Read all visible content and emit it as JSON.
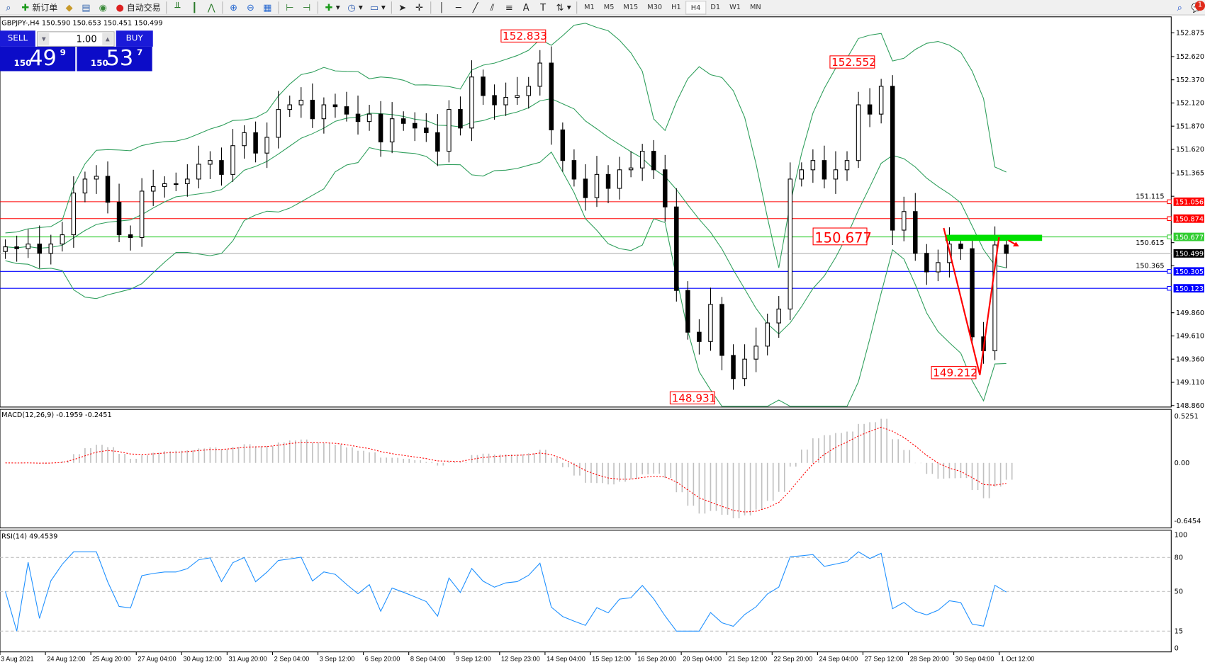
{
  "toolbar": {
    "new_order": "新订单",
    "auto_trading": "自动交易",
    "timeframes": [
      "M1",
      "M5",
      "M15",
      "M30",
      "H1",
      "H4",
      "D1",
      "W1",
      "MN"
    ],
    "active_timeframe": "H4",
    "notification_count": "1"
  },
  "chart": {
    "header": "GBPJPY-,H4  150.590 150.653 150.451 150.499",
    "trade_panel": {
      "sell_label": "SELL",
      "buy_label": "BUY",
      "lot": "1.00",
      "sell": {
        "prefix": "150",
        "big": "49",
        "pip": "9"
      },
      "buy": {
        "prefix": "150",
        "big": "53",
        "pip": "7"
      }
    },
    "price_ticks": [
      "152.875",
      "152.620",
      "152.370",
      "152.120",
      "151.870",
      "151.620",
      "151.365",
      "151.115",
      "150.615",
      "150.365",
      "149.860",
      "149.610",
      "149.360",
      "149.110",
      "148.860"
    ],
    "levels": [
      {
        "price": "151.056",
        "color": "#ff0000"
      },
      {
        "price": "150.874",
        "color": "#ff0000"
      },
      {
        "price": "150.677",
        "color": "#32cd32"
      },
      {
        "price": "150.499",
        "color": "#000000",
        "current": true
      },
      {
        "price": "150.305",
        "color": "#0000ff"
      },
      {
        "price": "150.123",
        "color": "#0000ff"
      }
    ],
    "annotations": [
      "152.833",
      "152.552",
      "150.677",
      "148.931",
      "149.212"
    ],
    "colors": {
      "bands": "#2e9e5b",
      "macd_hist": "#c0c0c0",
      "macd_signal": "#ff0000",
      "rsi": "#1e90ff",
      "bull": "#ffffff",
      "bear": "#000000",
      "zone": "#00e000",
      "drawing": "#ff0000"
    },
    "closes": [
      150.57,
      150.55,
      150.6,
      150.5,
      150.6,
      150.7,
      151.15,
      151.3,
      151.33,
      151.05,
      150.7,
      150.67,
      151.17,
      151.22,
      151.25,
      151.25,
      151.3,
      151.46,
      151.5,
      151.35,
      151.66,
      151.8,
      151.58,
      151.75,
      152.05,
      152.1,
      152.15,
      151.95,
      152.1,
      152.08,
      152.0,
      151.92,
      152.0,
      151.7,
      151.95,
      151.9,
      151.85,
      151.8,
      151.6,
      152.05,
      151.85,
      152.4,
      152.2,
      152.1,
      152.18,
      152.2,
      152.3,
      152.55,
      151.83,
      151.5,
      151.3,
      151.1,
      151.35,
      151.2,
      151.4,
      151.42,
      151.6,
      151.4,
      151.0,
      150.1,
      149.65,
      149.55,
      149.95,
      149.4,
      149.15,
      149.36,
      149.5,
      149.75,
      149.9,
      151.3,
      151.4,
      151.5,
      151.3,
      151.4,
      151.5,
      152.1,
      152.0,
      152.3,
      150.75,
      150.95,
      150.5,
      150.3,
      150.4,
      150.6,
      150.55,
      149.6,
      149.45,
      150.59,
      150.499
    ]
  },
  "macd": {
    "label": "MACD(12,26,9) -0.1959 -0.2451",
    "ticks": [
      "0.5251",
      "0.00",
      "-0.6454"
    ]
  },
  "rsi": {
    "label": "RSI(14) 49.4539",
    "ticks": [
      "100",
      "80",
      "50",
      "15",
      "0"
    ],
    "current": 49.4539
  },
  "time_axis": [
    "3 Aug 2021",
    "24 Aug 12:00",
    "25 Aug 20:00",
    "27 Aug 04:00",
    "30 Aug 12:00",
    "31 Aug 20:00",
    "2 Sep 04:00",
    "3 Sep 12:00",
    "6 Sep 20:00",
    "8 Sep 04:00",
    "9 Sep 12:00",
    "12 Sep 23:00",
    "14 Sep 04:00",
    "15 Sep 12:00",
    "16 Sep 20:00",
    "20 Sep 04:00",
    "21 Sep 12:00",
    "22 Sep 20:00",
    "24 Sep 04:00",
    "27 Sep 12:00",
    "28 Sep 20:00",
    "30 Sep 04:00",
    "1 Oct 12:00"
  ]
}
